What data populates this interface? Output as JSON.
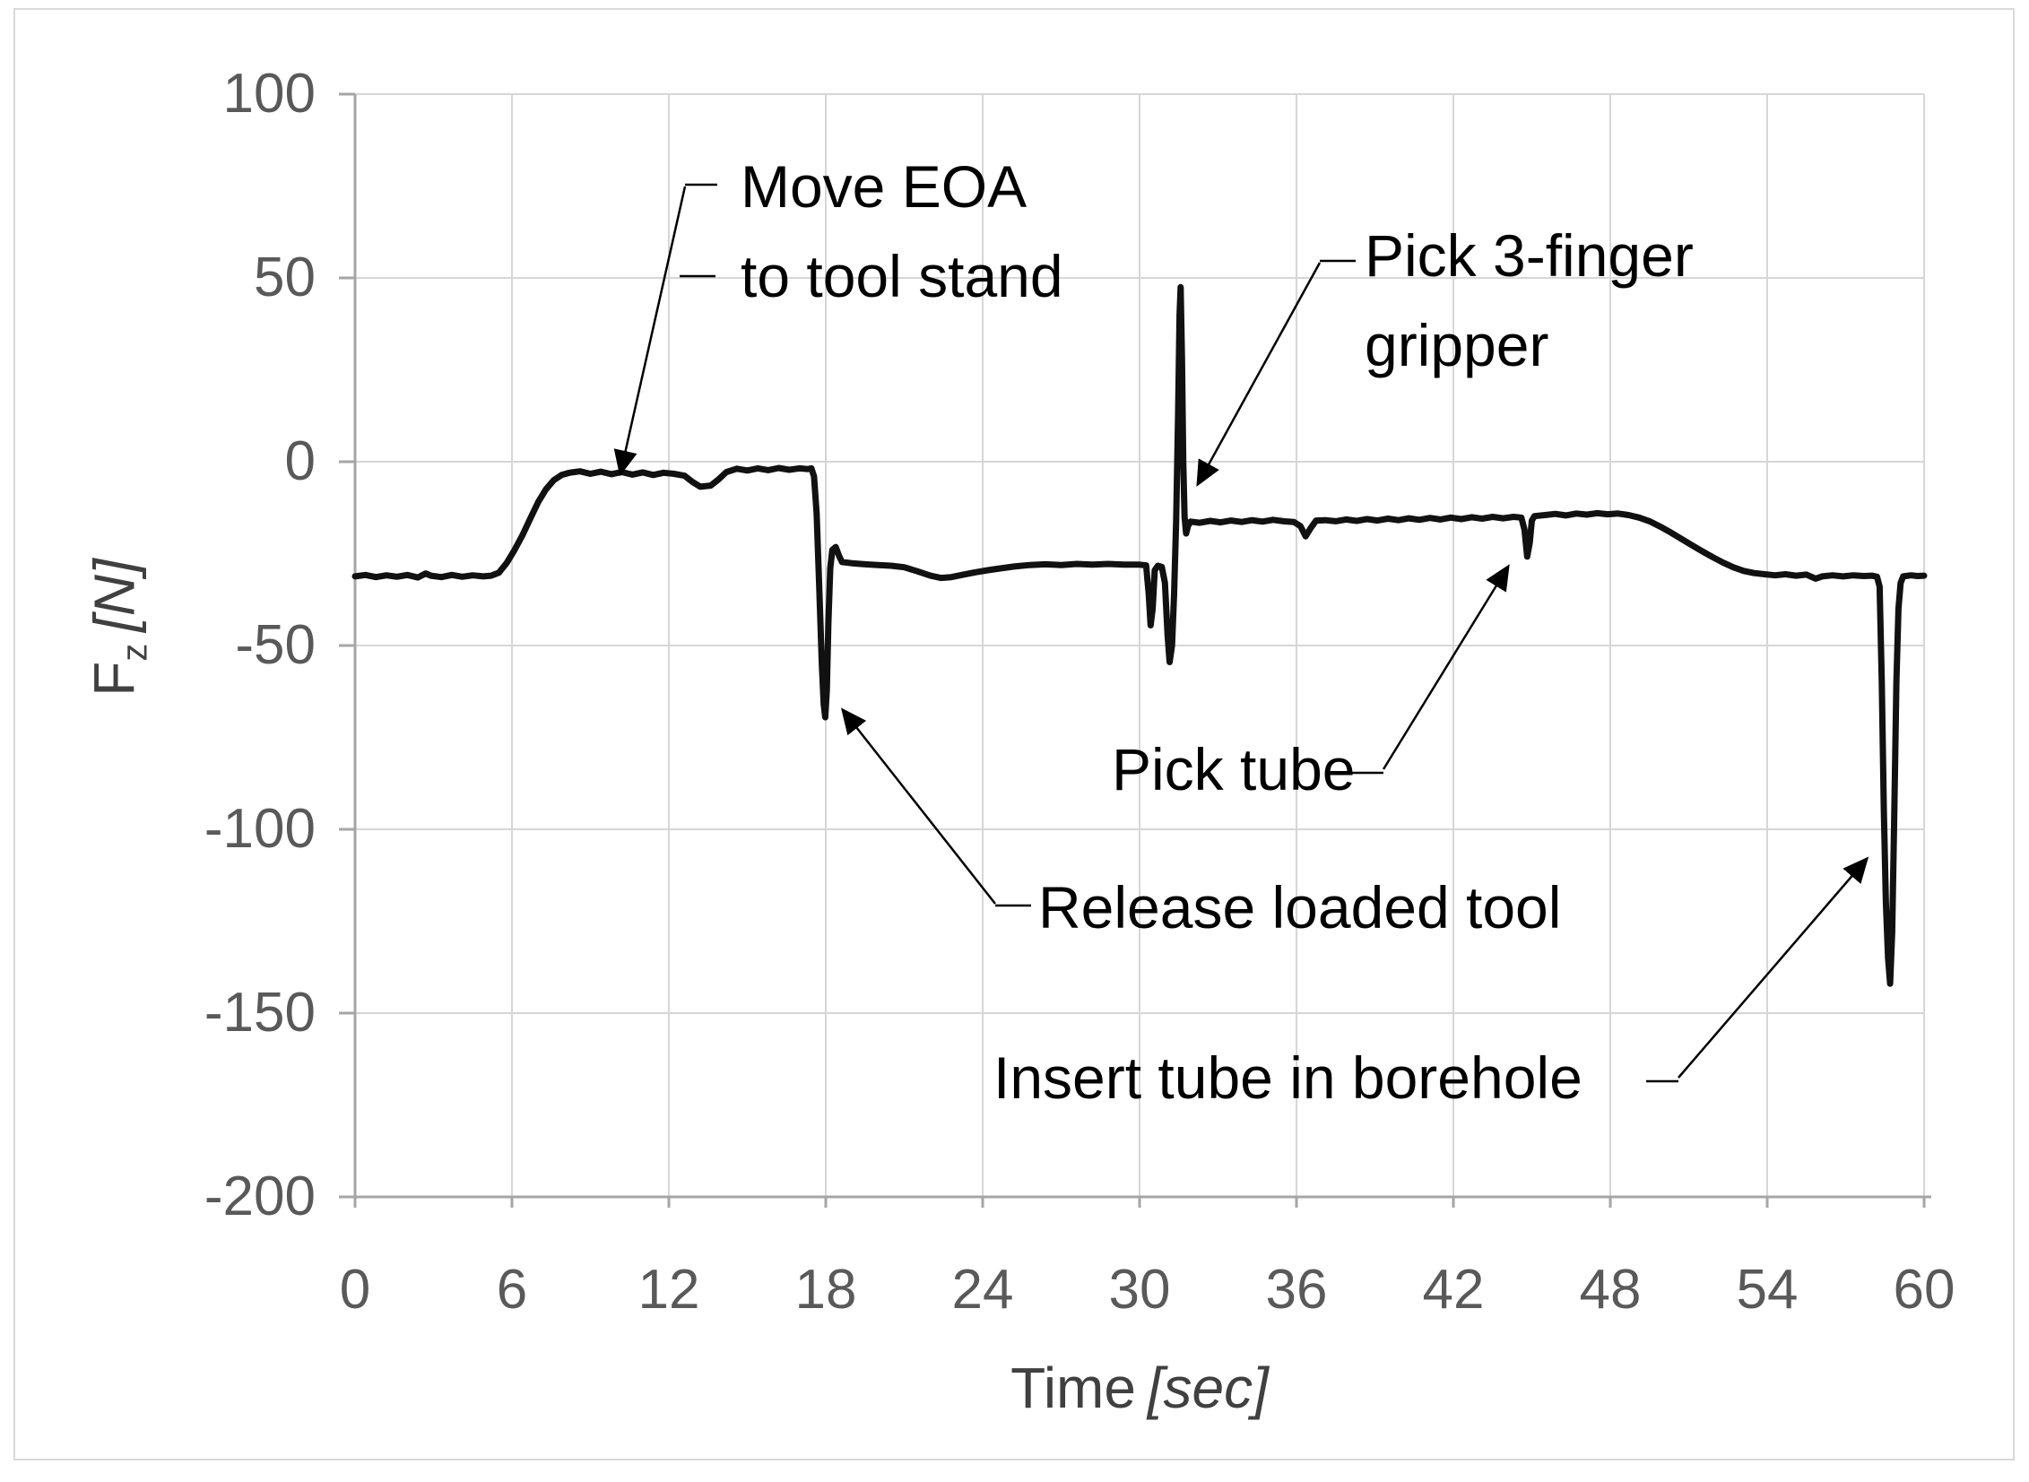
{
  "chart_data": {
    "type": "line",
    "title": "",
    "xlabel_main": "Time",
    "xlabel_unit": "[sec]",
    "ylabel_main": "F",
    "ylabel_sub": "z",
    "ylabel_unit": "[N]",
    "xlim": [
      0,
      60
    ],
    "ylim": [
      -200,
      100
    ],
    "grid": true,
    "x_ticks": [
      0,
      6,
      12,
      18,
      24,
      30,
      36,
      42,
      48,
      54,
      60
    ],
    "y_ticks": [
      100,
      50,
      0,
      -50,
      -100,
      -150,
      -200
    ],
    "colors": {
      "trace": "#111111",
      "grid": "#d6d6d6",
      "axis": "#a6a6a6",
      "tick_text": "#595959",
      "axis_title_text": "#404040",
      "annotation_text": "#000000",
      "frame": "#d9d9d9"
    },
    "annotations": [
      {
        "id": "move-eoa",
        "lines": [
          "Move EOA",
          "to tool stand"
        ]
      },
      {
        "id": "pick-3finger",
        "lines": [
          "Pick 3-finger",
          "gripper"
        ]
      },
      {
        "id": "pick-tube",
        "lines": [
          "Pick tube"
        ]
      },
      {
        "id": "release-tool",
        "lines": [
          "Release loaded tool"
        ]
      },
      {
        "id": "insert-tube",
        "lines": [
          "Insert tube in borehole"
        ]
      }
    ],
    "series": [
      {
        "name": "Fz",
        "points": [
          [
            0,
            -31.2
          ],
          [
            0.4,
            -30.8
          ],
          [
            0.8,
            -31.4
          ],
          [
            1.2,
            -30.9
          ],
          [
            1.6,
            -31.3
          ],
          [
            2.0,
            -30.8
          ],
          [
            2.4,
            -31.5
          ],
          [
            2.7,
            -30.4
          ],
          [
            2.9,
            -31.0
          ],
          [
            3.3,
            -31.4
          ],
          [
            3.7,
            -30.8
          ],
          [
            4.1,
            -31.3
          ],
          [
            4.5,
            -30.9
          ],
          [
            4.9,
            -31.2
          ],
          [
            5.2,
            -31.0
          ],
          [
            5.5,
            -30.2
          ],
          [
            5.8,
            -27.5
          ],
          [
            6.1,
            -24
          ],
          [
            6.4,
            -20
          ],
          [
            6.7,
            -15.5
          ],
          [
            7.0,
            -11
          ],
          [
            7.3,
            -7.5
          ],
          [
            7.6,
            -5
          ],
          [
            7.9,
            -3.6
          ],
          [
            8.2,
            -3.0
          ],
          [
            8.6,
            -2.6
          ],
          [
            9.0,
            -3.3
          ],
          [
            9.4,
            -2.7
          ],
          [
            9.8,
            -3.4
          ],
          [
            10.2,
            -2.8
          ],
          [
            10.6,
            -3.5
          ],
          [
            11.0,
            -2.9
          ],
          [
            11.4,
            -3.6
          ],
          [
            11.8,
            -3.0
          ],
          [
            12.2,
            -3.3
          ],
          [
            12.6,
            -3.8
          ],
          [
            12.9,
            -5.5
          ],
          [
            13.2,
            -6.8
          ],
          [
            13.6,
            -6.5
          ],
          [
            13.9,
            -4.8
          ],
          [
            14.2,
            -2.8
          ],
          [
            14.6,
            -1.9
          ],
          [
            15.0,
            -2.4
          ],
          [
            15.4,
            -1.8
          ],
          [
            15.8,
            -2.3
          ],
          [
            16.2,
            -1.7
          ],
          [
            16.6,
            -2.2
          ],
          [
            17.0,
            -1.8
          ],
          [
            17.3,
            -2.0
          ],
          [
            17.45,
            -1.8
          ],
          [
            17.55,
            -4
          ],
          [
            17.65,
            -14
          ],
          [
            17.75,
            -34
          ],
          [
            17.85,
            -55
          ],
          [
            17.92,
            -66
          ],
          [
            17.98,
            -69.5
          ],
          [
            18.04,
            -62
          ],
          [
            18.1,
            -44
          ],
          [
            18.17,
            -29
          ],
          [
            18.25,
            -24
          ],
          [
            18.38,
            -23.2
          ],
          [
            18.5,
            -25.5
          ],
          [
            18.62,
            -27.3
          ],
          [
            19.0,
            -27.6
          ],
          [
            19.5,
            -27.9
          ],
          [
            20.0,
            -28.1
          ],
          [
            20.5,
            -28.3
          ],
          [
            21.0,
            -28.7
          ],
          [
            21.5,
            -29.8
          ],
          [
            22.0,
            -31.0
          ],
          [
            22.4,
            -31.6
          ],
          [
            22.8,
            -31.4
          ],
          [
            23.2,
            -30.8
          ],
          [
            23.7,
            -30.1
          ],
          [
            24.2,
            -29.5
          ],
          [
            24.7,
            -29.0
          ],
          [
            25.2,
            -28.5
          ],
          [
            25.8,
            -28.1
          ],
          [
            26.4,
            -27.9
          ],
          [
            27.0,
            -28.1
          ],
          [
            27.6,
            -27.8
          ],
          [
            28.2,
            -28.0
          ],
          [
            28.8,
            -27.8
          ],
          [
            29.4,
            -28.0
          ],
          [
            30.0,
            -28.0
          ],
          [
            30.25,
            -28.2
          ],
          [
            30.35,
            -36
          ],
          [
            30.42,
            -44.5
          ],
          [
            30.5,
            -40
          ],
          [
            30.58,
            -29.5
          ],
          [
            30.7,
            -28.3
          ],
          [
            30.85,
            -28.6
          ],
          [
            30.97,
            -33
          ],
          [
            31.07,
            -47
          ],
          [
            31.15,
            -54.5
          ],
          [
            31.24,
            -50
          ],
          [
            31.32,
            -36
          ],
          [
            31.4,
            -16
          ],
          [
            31.47,
            12
          ],
          [
            31.53,
            40
          ],
          [
            31.57,
            47.5
          ],
          [
            31.62,
            28
          ],
          [
            31.67,
            0
          ],
          [
            31.72,
            -15
          ],
          [
            31.78,
            -19.5
          ],
          [
            31.85,
            -17.5
          ],
          [
            31.95,
            -16.3
          ],
          [
            32.3,
            -16.6
          ],
          [
            32.7,
            -16.1
          ],
          [
            33.1,
            -16.5
          ],
          [
            33.5,
            -16.0
          ],
          [
            33.9,
            -16.4
          ],
          [
            34.3,
            -15.9
          ],
          [
            34.7,
            -16.3
          ],
          [
            35.1,
            -15.8
          ],
          [
            35.5,
            -16.2
          ],
          [
            35.9,
            -16.4
          ],
          [
            36.15,
            -17.5
          ],
          [
            36.35,
            -20.3
          ],
          [
            36.55,
            -18.0
          ],
          [
            36.75,
            -16.0
          ],
          [
            37.1,
            -15.9
          ],
          [
            37.5,
            -16.2
          ],
          [
            37.9,
            -15.7
          ],
          [
            38.3,
            -16.1
          ],
          [
            38.7,
            -15.6
          ],
          [
            39.1,
            -16.0
          ],
          [
            39.5,
            -15.5
          ],
          [
            39.9,
            -15.9
          ],
          [
            40.3,
            -15.4
          ],
          [
            40.7,
            -15.8
          ],
          [
            41.1,
            -15.3
          ],
          [
            41.5,
            -15.7
          ],
          [
            41.9,
            -15.2
          ],
          [
            42.3,
            -15.6
          ],
          [
            42.7,
            -15.1
          ],
          [
            43.1,
            -15.5
          ],
          [
            43.5,
            -15.0
          ],
          [
            43.9,
            -15.4
          ],
          [
            44.3,
            -15.0
          ],
          [
            44.6,
            -15.2
          ],
          [
            44.72,
            -18.5
          ],
          [
            44.82,
            -25.8
          ],
          [
            44.92,
            -22
          ],
          [
            45.0,
            -16
          ],
          [
            45.1,
            -14.8
          ],
          [
            45.5,
            -14.5
          ],
          [
            45.9,
            -14.2
          ],
          [
            46.3,
            -14.6
          ],
          [
            46.7,
            -14.1
          ],
          [
            47.1,
            -14.4
          ],
          [
            47.5,
            -14.0
          ],
          [
            47.9,
            -14.3
          ],
          [
            48.3,
            -14.1
          ],
          [
            48.7,
            -14.5
          ],
          [
            49.1,
            -15.2
          ],
          [
            49.5,
            -16.2
          ],
          [
            49.9,
            -17.6
          ],
          [
            50.3,
            -19.2
          ],
          [
            50.7,
            -20.9
          ],
          [
            51.1,
            -22.6
          ],
          [
            51.5,
            -24.3
          ],
          [
            51.9,
            -25.9
          ],
          [
            52.3,
            -27.4
          ],
          [
            52.7,
            -28.7
          ],
          [
            53.1,
            -29.7
          ],
          [
            53.5,
            -30.3
          ],
          [
            53.9,
            -30.6
          ],
          [
            54.3,
            -30.9
          ],
          [
            54.7,
            -30.6
          ],
          [
            55.1,
            -31.0
          ],
          [
            55.5,
            -30.7
          ],
          [
            55.85,
            -31.8
          ],
          [
            56.1,
            -31.2
          ],
          [
            56.5,
            -30.9
          ],
          [
            56.9,
            -31.2
          ],
          [
            57.3,
            -30.9
          ],
          [
            57.7,
            -31.1
          ],
          [
            58.0,
            -31.0
          ],
          [
            58.2,
            -31.3
          ],
          [
            58.3,
            -34
          ],
          [
            58.38,
            -60
          ],
          [
            58.46,
            -95
          ],
          [
            58.54,
            -120
          ],
          [
            58.62,
            -135
          ],
          [
            58.7,
            -142
          ],
          [
            58.78,
            -128
          ],
          [
            58.86,
            -95
          ],
          [
            58.94,
            -60
          ],
          [
            59.02,
            -40
          ],
          [
            59.1,
            -33
          ],
          [
            59.2,
            -31.2
          ],
          [
            59.5,
            -30.9
          ],
          [
            59.75,
            -31.1
          ],
          [
            60,
            -31.0
          ]
        ]
      }
    ]
  }
}
